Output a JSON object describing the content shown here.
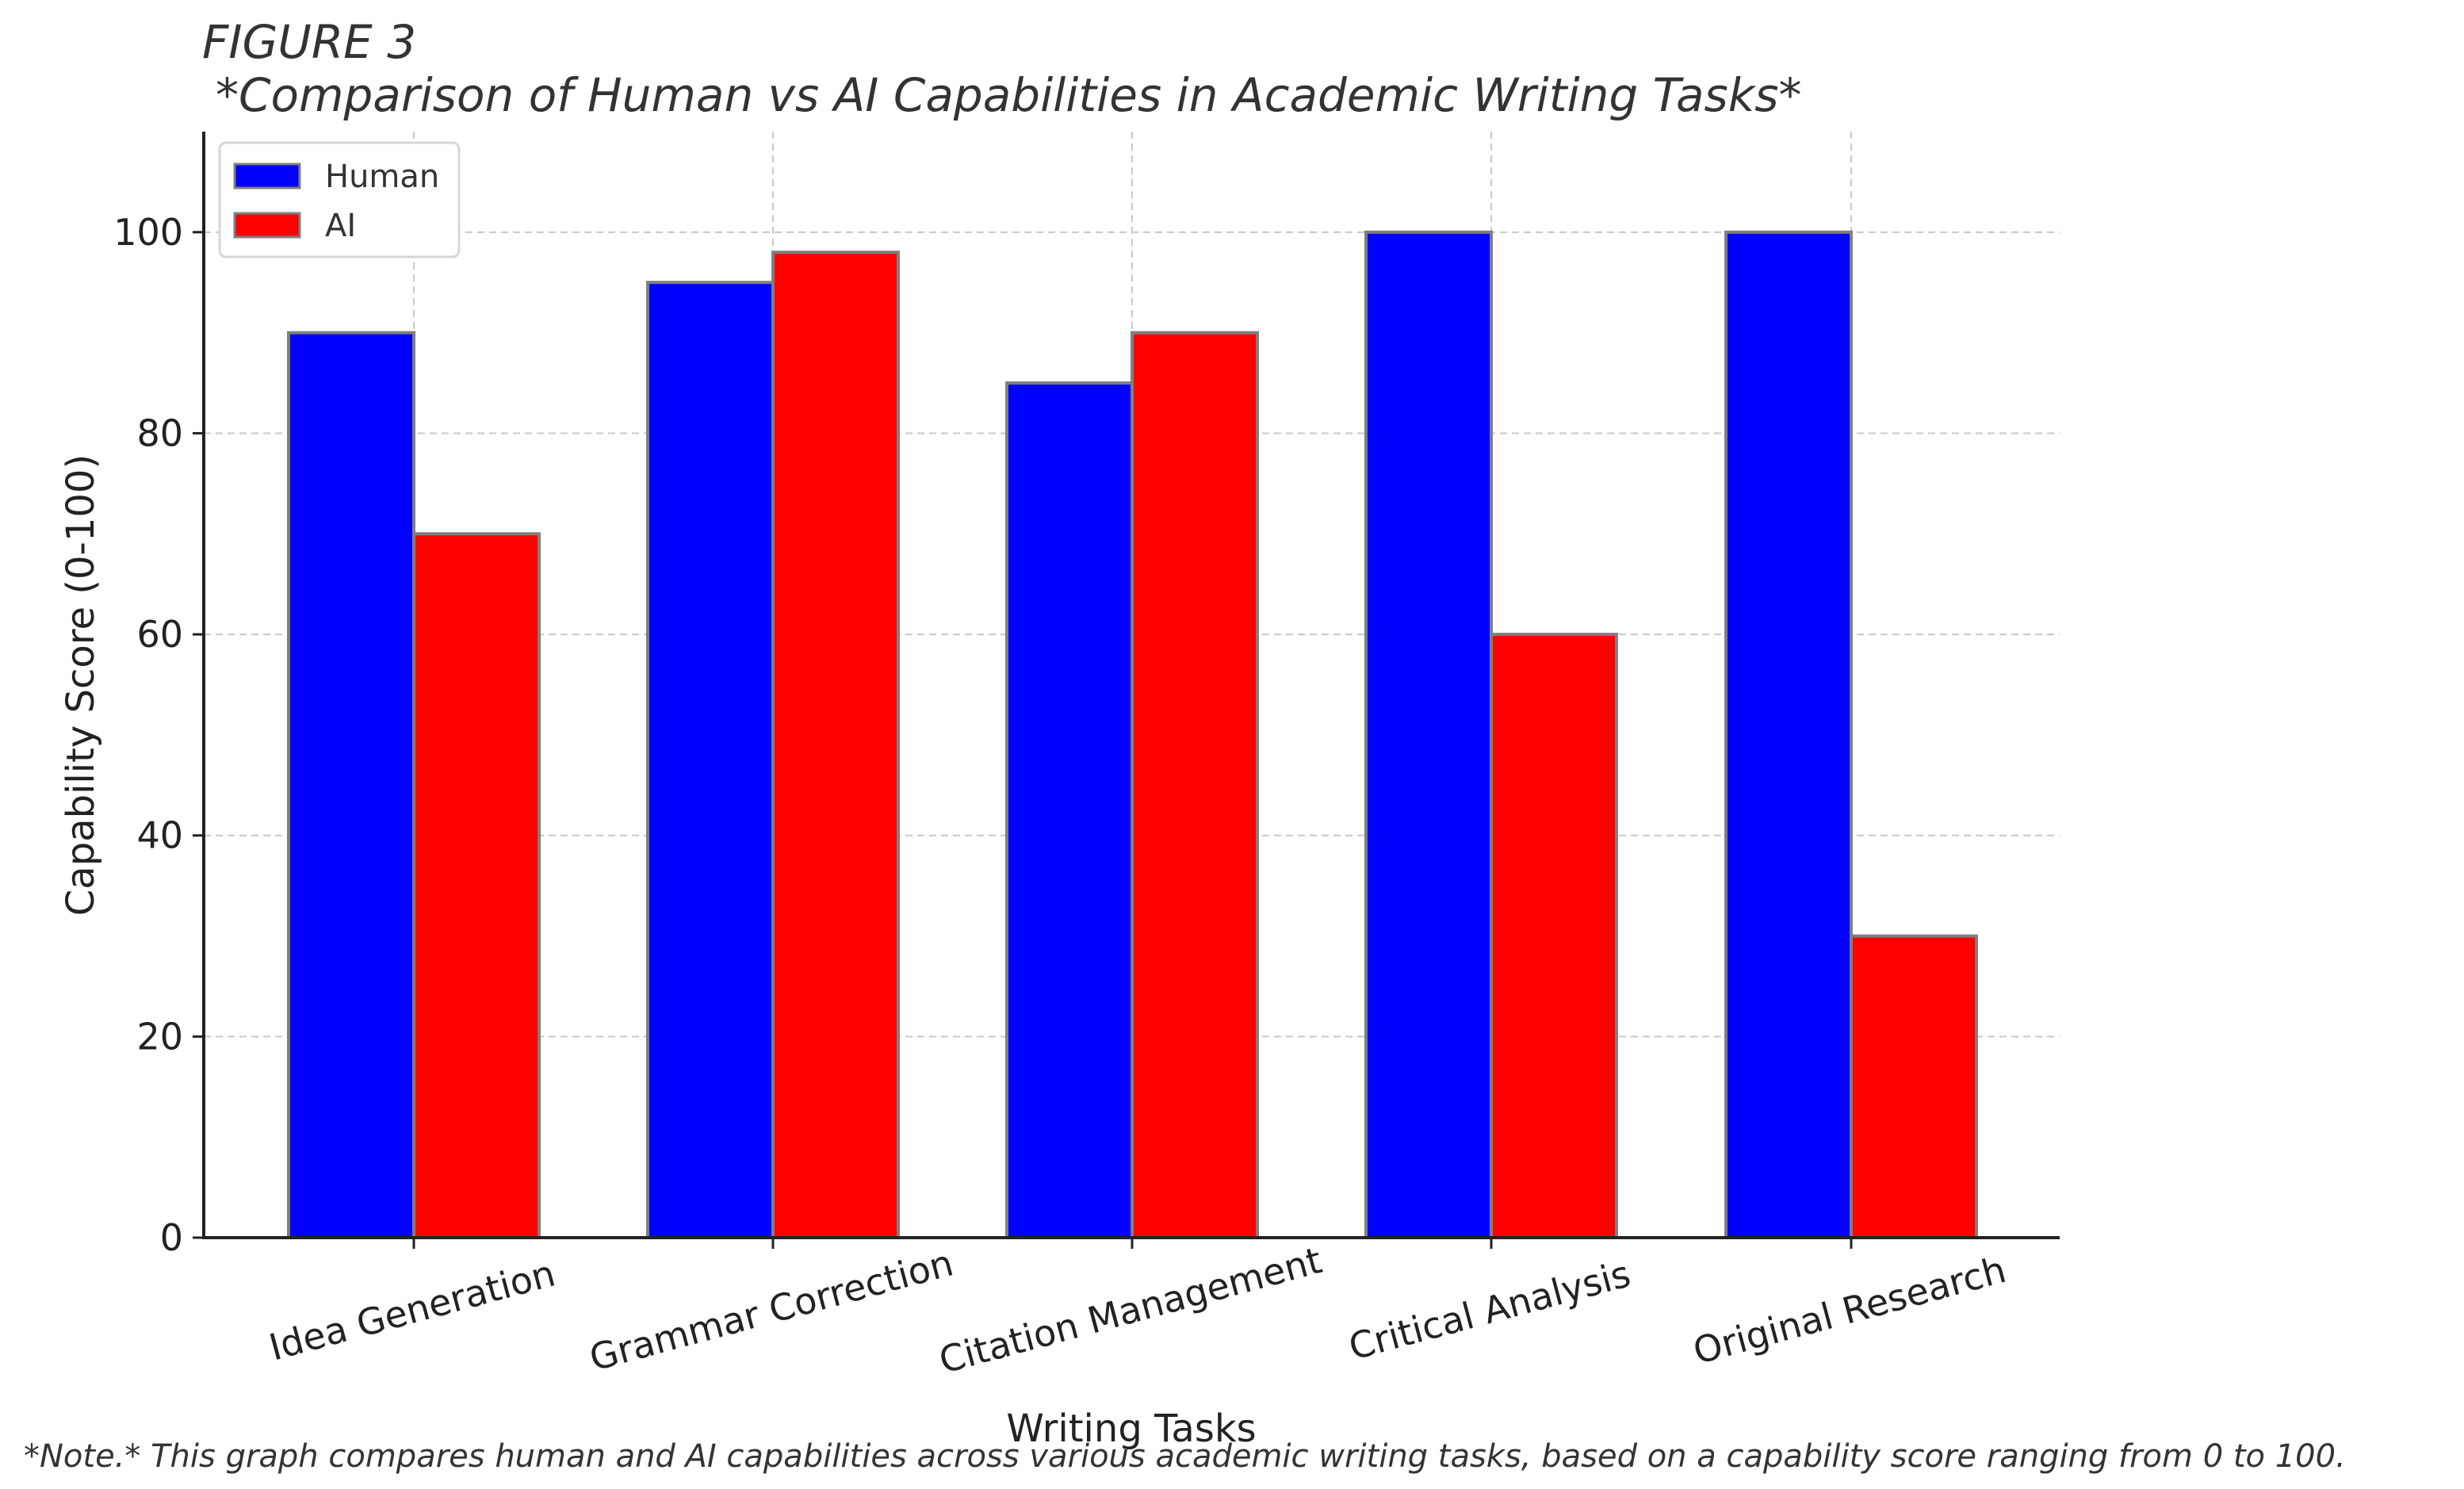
{
  "figure_label": "FIGURE 3",
  "note": "*Note.* This graph compares human and AI capabilities across various academic writing tasks, based on a capability score ranging from 0 to 100.",
  "colors": {
    "human": "#0000ff",
    "ai": "#ff0000",
    "bar_edge": "#7f7f7f",
    "grid": "#c8c8c8"
  },
  "chart_data": {
    "type": "bar",
    "title": "*Comparison of Human vs AI Capabilities in Academic Writing Tasks*",
    "xlabel": "Writing Tasks",
    "ylabel": "Capability Score (0-100)",
    "categories": [
      "Idea Generation",
      "Grammar Correction",
      "Citation Management",
      "Critical Analysis",
      "Original Research"
    ],
    "series": [
      {
        "name": "Human",
        "values": [
          90,
          95,
          85,
          100,
          100
        ]
      },
      {
        "name": "AI",
        "values": [
          70,
          98,
          90,
          60,
          30
        ]
      }
    ],
    "ylim": [
      0,
      110
    ],
    "yticks": [
      0,
      20,
      40,
      60,
      80,
      100
    ],
    "grid": true,
    "legend_position": "top-left"
  }
}
